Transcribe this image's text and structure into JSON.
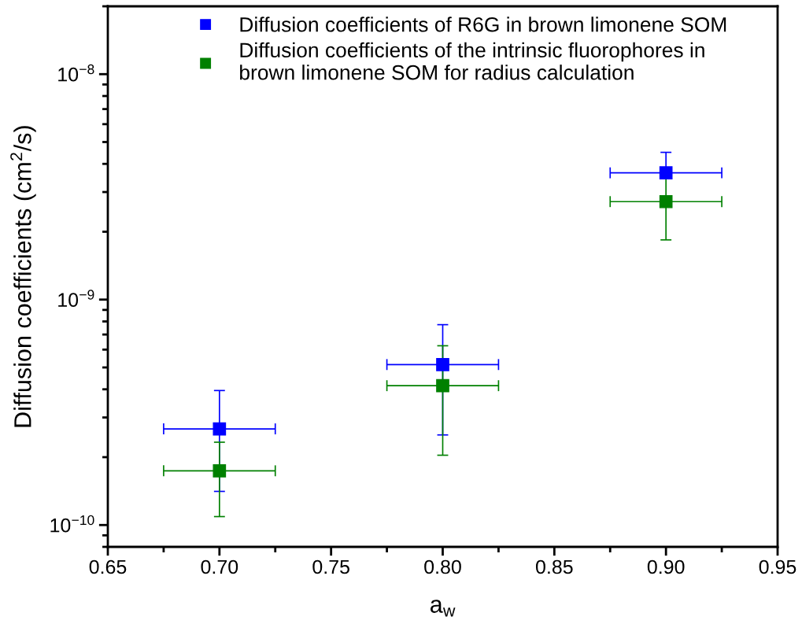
{
  "chart_data": {
    "type": "scatter",
    "xlabel": "a$_{w}$",
    "ylabel": "Diffusion coefficients (cm$^{2}$/s)",
    "x": [
      0.7,
      0.8,
      0.9
    ],
    "log": "y",
    "marker": "square",
    "legend": "top",
    "grid": false,
    "xlim": [
      0.65,
      0.95
    ],
    "xticks": [
      {
        "value": 0.65,
        "label": "0.65"
      },
      {
        "value": 0.7,
        "label": "0.70"
      },
      {
        "value": 0.75,
        "label": "0.75"
      },
      {
        "value": 0.8,
        "label": "0.80"
      },
      {
        "value": 0.85,
        "label": "0.85"
      },
      {
        "value": 0.9,
        "label": "0.90"
      },
      {
        "value": 0.95,
        "label": "0.95"
      }
    ],
    "ylim": [
      8e-11,
      2e-08
    ],
    "yticks": [
      {
        "value": 1e-10,
        "label": "10$^{−10}$"
      },
      {
        "value": 1e-09,
        "label": "10$^{−9}$"
      },
      {
        "value": 1e-08,
        "label": "10$^{−8}$"
      }
    ],
    "series": [
      {
        "name": "Diffusion coefficients of R6G in brown limonene SOM",
        "color": "#0000ff",
        "values": [
          2.67e-10,
          5.15e-10,
          3.65e-09
        ],
        "errors": [
          [
            1.41e-10,
            3.95e-10
          ],
          [
            2.51e-10,
            7.74e-10
          ],
          [
            3.65e-09,
            4.5e-09
          ]
        ],
        "xerrors": [
          0.025,
          0.025,
          0.025
        ]
      },
      {
        "name": "Diffusion coefficients of the intrinsic fluorophores in\nbrown limonene SOM for radius calculation",
        "color": "#008000",
        "values": [
          1.74e-10,
          4.15e-10,
          2.72e-09
        ],
        "errors": [
          [
            1.09e-10,
            2.33e-10
          ],
          [
            2.04e-10,
            6.24e-10
          ],
          [
            1.84e-09,
            3.45e-09
          ]
        ],
        "xerrors": [
          0.025,
          0.025,
          0.025
        ]
      }
    ]
  }
}
